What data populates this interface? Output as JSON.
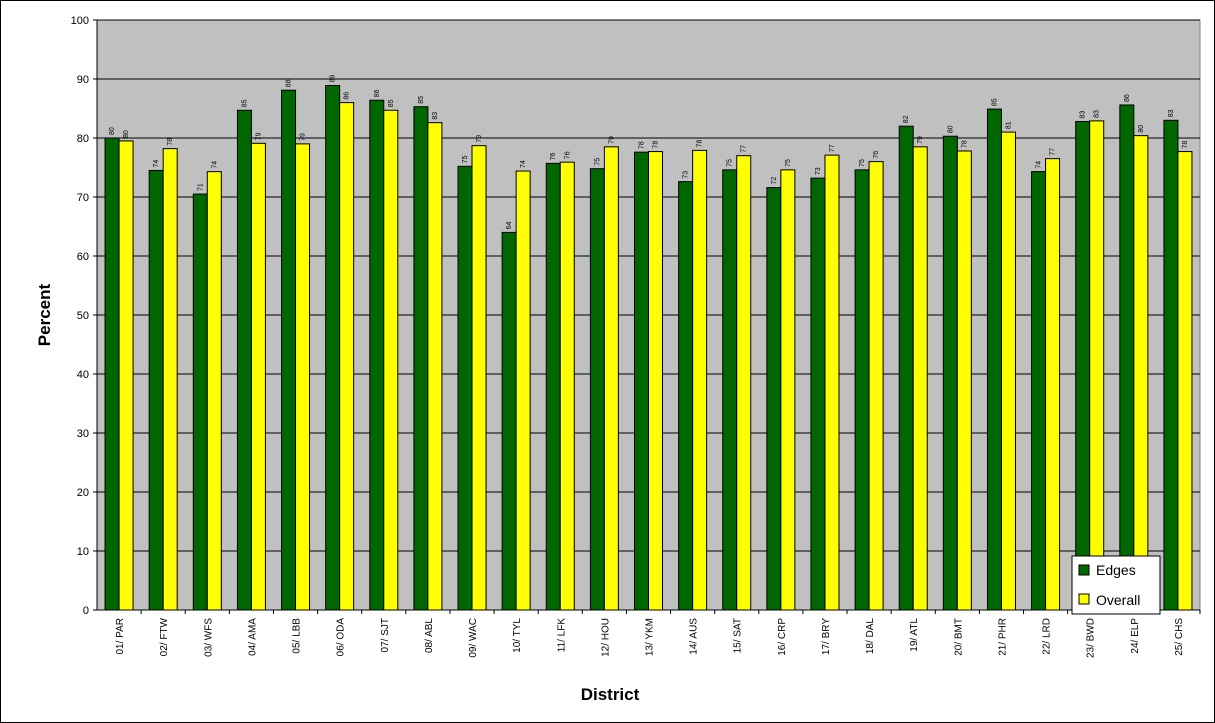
{
  "chart_data": {
    "type": "bar",
    "xlabel": "District",
    "ylabel": "Percent",
    "ylim": [
      0,
      100
    ],
    "yticks": [
      0,
      10,
      20,
      30,
      40,
      50,
      60,
      70,
      80,
      90,
      100
    ],
    "grid": true,
    "legend_position": "bottom-right",
    "categories": [
      "01/ PAR",
      "02/ FTW",
      "03/ WFS",
      "04/ AMA",
      "05/ LBB",
      "06/ ODA",
      "07/ SJT",
      "08/ ABL",
      "09/ WAC",
      "10/ TYL",
      "11/ LFK",
      "12/ HOU",
      "13/ YKM",
      "14/ AUS",
      "15/ SAT",
      "16/ CRP",
      "17/ BRY",
      "18/ DAL",
      "19/ ATL",
      "20/ BMT",
      "21/ PHR",
      "22/ LRD",
      "23/ BWD",
      "24/ ELP",
      "25/ CHS"
    ],
    "series": [
      {
        "name": "Edges",
        "color": "#006600",
        "values": [
          80,
          74.5,
          70.5,
          84.7,
          88.1,
          88.9,
          86.4,
          85.3,
          75.2,
          64,
          75.7,
          74.8,
          77.6,
          72.6,
          74.6,
          71.6,
          73.2,
          74.6,
          82,
          80.3,
          84.9,
          74.3,
          82.8,
          85.6,
          83
        ],
        "labels": [
          "80",
          "74",
          "71",
          "85",
          "88",
          "89",
          "86",
          "85",
          "75",
          "64",
          "76",
          "75",
          "78",
          "73",
          "75",
          "72",
          "73",
          "75",
          "82",
          "80",
          "85",
          "74",
          "83",
          "86",
          "83"
        ]
      },
      {
        "name": "Overall",
        "color": "#ffff00",
        "values": [
          79.5,
          78.2,
          74.3,
          79.1,
          79,
          86,
          84.7,
          82.6,
          78.7,
          74.4,
          75.9,
          78.5,
          77.7,
          77.9,
          77,
          74.6,
          77.1,
          76,
          78.5,
          77.8,
          81,
          76.5,
          82.9,
          80.4,
          77.7
        ],
        "labels": [
          "80",
          "78",
          "74",
          "79",
          "79",
          "86",
          "85",
          "83",
          "79",
          "74",
          "76",
          "79",
          "78",
          "78",
          "77",
          "75",
          "77",
          "76",
          "79",
          "78",
          "81",
          "77",
          "83",
          "80",
          "78"
        ]
      }
    ]
  }
}
